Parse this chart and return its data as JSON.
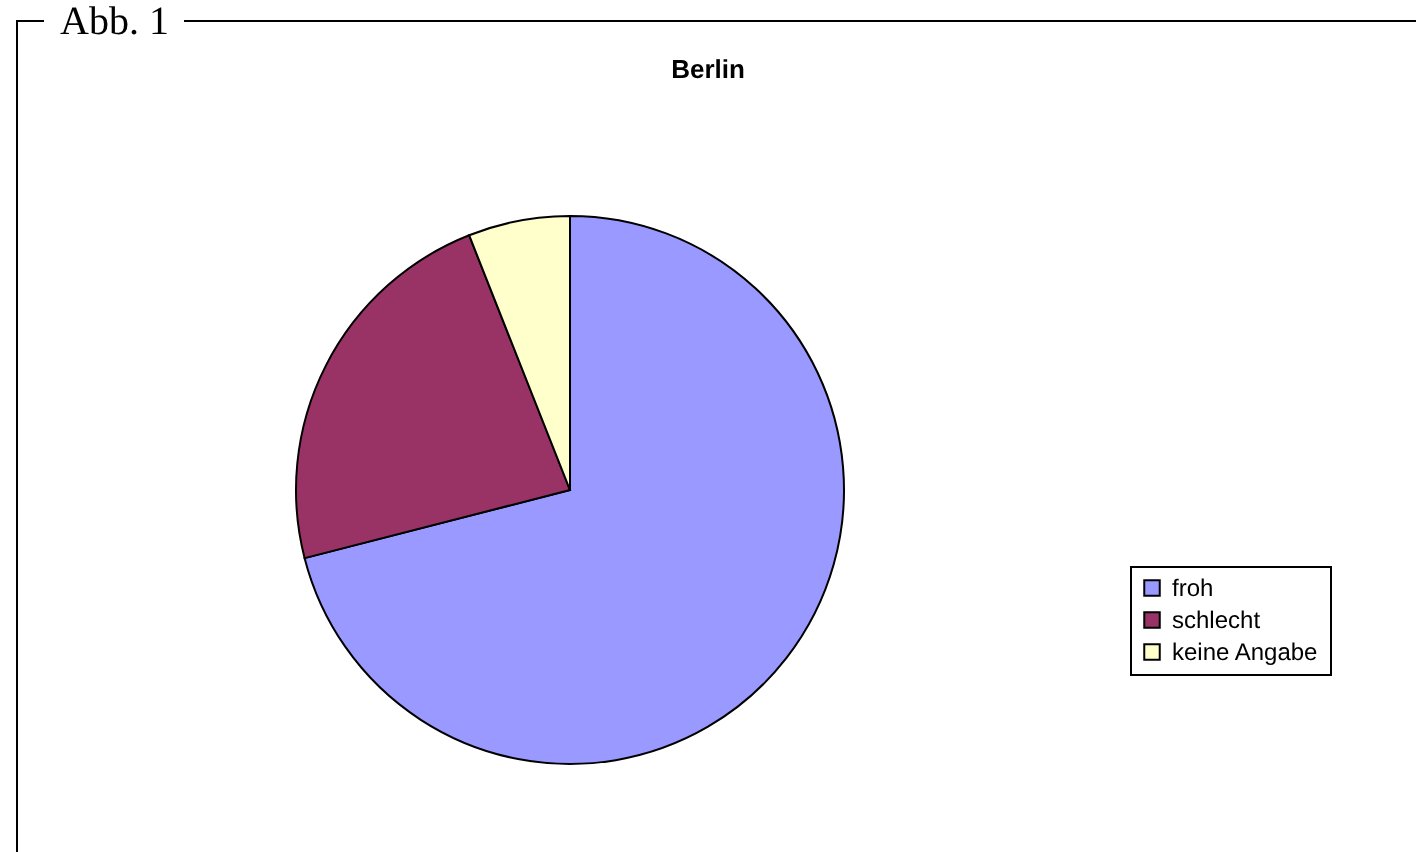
{
  "chart_data": {
    "type": "pie",
    "title": "Berlin",
    "annotations": [
      "Abb. 1"
    ],
    "categories": [
      "froh",
      "schlecht",
      "keine Angabe"
    ],
    "values": [
      71,
      23,
      6
    ],
    "colors": [
      "#9999ff",
      "#993366",
      "#ffffcc"
    ],
    "legend": "right"
  }
}
